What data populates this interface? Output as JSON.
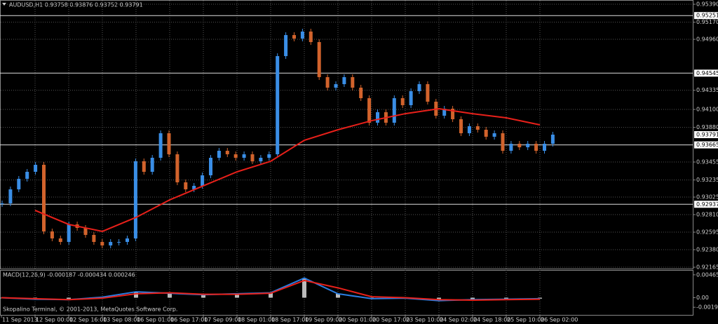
{
  "header": "AUDUSD,H1  0.93758 0.93876 0.93752 0.93791",
  "main": {
    "ylim": [
      0.92148,
      0.95442
    ],
    "yticks": [
      {
        "value": 0.9539,
        "label": "0.95390"
      },
      {
        "value": 0.9517,
        "label": "0.95170"
      },
      {
        "value": 0.9496,
        "label": "0.94960"
      },
      {
        "value": 0.94335,
        "label": "0.94335"
      },
      {
        "value": 0.941,
        "label": "0.94100"
      },
      {
        "value": 0.9388,
        "label": "0.93880"
      },
      {
        "value": 0.93455,
        "label": "0.93455"
      },
      {
        "value": 0.93235,
        "label": "0.93235"
      },
      {
        "value": 0.93025,
        "label": "0.93025"
      },
      {
        "value": 0.9281,
        "label": "0.92810"
      },
      {
        "value": 0.92595,
        "label": "0.92595"
      },
      {
        "value": 0.9238,
        "label": "0.92380"
      },
      {
        "value": 0.92165,
        "label": "0.92165"
      }
    ],
    "levels": [
      {
        "value": 0.95251,
        "label": "0.95251"
      },
      {
        "value": 0.94545,
        "label": "0.94545"
      },
      {
        "value": 0.93665,
        "label": "0.93665"
      },
      {
        "value": 0.92937,
        "label": "0.92937"
      }
    ],
    "current": {
      "value": 0.93791,
      "label": "0.93791"
    },
    "close": [
      0.92948,
      0.9312,
      0.93249,
      0.93335,
      0.93421,
      0.92604,
      0.92518,
      0.92475,
      0.9269,
      0.92647,
      0.92561,
      0.92475,
      0.92432,
      0.92475,
      0.92475,
      0.92518,
      0.93464,
      0.93335,
      0.93507,
      0.93808,
      0.9355,
      0.93206,
      0.9312,
      0.93163,
      0.93292,
      0.93507,
      0.93593,
      0.9355,
      0.93507,
      0.9355,
      0.93464,
      0.93507,
      0.9355,
      0.94754,
      0.95012,
      0.94969,
      0.95055,
      0.94926,
      0.94496,
      0.94367,
      0.9441,
      0.94496,
      0.94367,
      0.94238,
      0.93937,
      0.94066,
      0.93937,
      0.94238,
      0.94152,
      0.94324,
      0.9441,
      0.94195,
      0.94023,
      0.94109,
      0.9398,
      0.93808,
      0.93894,
      0.93851,
      0.93765,
      0.93808,
      0.93593,
      0.93679,
      0.93636,
      0.93679,
      0.93593,
      0.93679,
      0.93791
    ],
    "ma": [
      null,
      0.92862,
      0.9269,
      0.92604,
      0.92776,
      0.92991,
      0.93163,
      0.93335,
      0.93464,
      0.93722,
      0.93851,
      0.93962,
      0.94048,
      0.94109,
      0.94048,
      0.93997,
      0.93911
    ]
  },
  "dates": [
    "11 Sep 2013",
    "12 Sep 00:00",
    "12 Sep 16:00",
    "13 Sep 08:00",
    "16 Sep 01:00",
    "16 Sep 17:00",
    "17 Sep 09:00",
    "18 Sep 01:00",
    "18 Sep 17:00",
    "19 Sep 09:00",
    "20 Sep 01:00",
    "20 Sep 17:00",
    "23 Sep 10:00",
    "24 Sep 02:00",
    "24 Sep 18:00",
    "25 Sep 10:00",
    "26 Sep 02:00"
  ],
  "macd": {
    "label": "MACD(12,26,9) -0.000187 -0.000434 0.000246",
    "ylim": [
      -0.00364,
      0.00549
    ],
    "yticks": [
      {
        "value": 0.00465,
        "label": "0.00465"
      },
      {
        "value": 0,
        "label": "0.00"
      },
      {
        "value": -0.00195,
        "label": "-0.00195"
      }
    ],
    "main": [
      0,
      -0.0003,
      -0.0004,
      0.0001,
      0.0012,
      0.0009,
      0.0006,
      0.0008,
      0.001,
      0.004,
      0.0008,
      -0.0002,
      -0.0001,
      -0.0006,
      -0.0004,
      -0.0003,
      -0.0002
    ],
    "signal": [
      0,
      -0.0002,
      -0.0004,
      -0.0001,
      0.0008,
      0.001,
      0.0007,
      0.0007,
      0.0009,
      0.0035,
      0.002,
      0.0002,
      0,
      -0.0004,
      -0.0005,
      -0.0004,
      -0.0003
    ]
  },
  "footer": "Skopalino Terminal, © 2001-2013, MetaQuotes Software Corp."
}
